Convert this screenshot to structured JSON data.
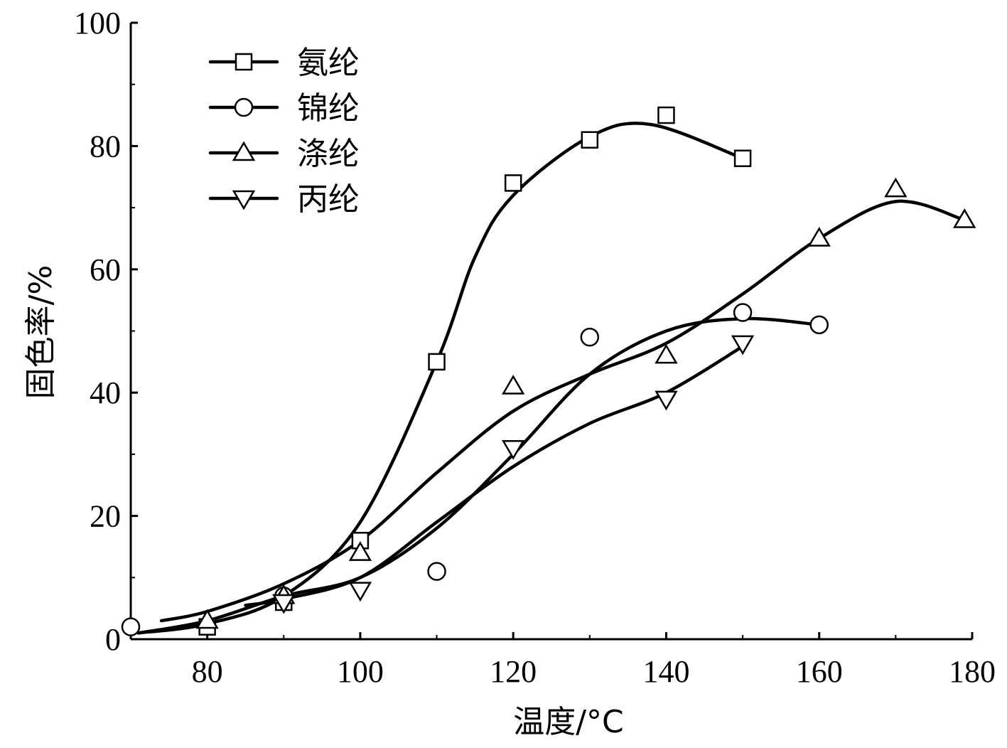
{
  "chart_data": {
    "type": "line",
    "title": "",
    "xlabel": "温度/°C",
    "ylabel": "固色率/%",
    "xlim": [
      70,
      180
    ],
    "ylim": [
      0,
      100
    ],
    "xticks": [
      80,
      100,
      120,
      140,
      160,
      180
    ],
    "yticks": [
      0,
      20,
      40,
      60,
      80,
      100
    ],
    "grid": false,
    "legend_position": "top-left",
    "series": [
      {
        "name": "氨纶",
        "marker": "square",
        "points": [
          [
            80,
            2
          ],
          [
            90,
            6
          ],
          [
            100,
            16
          ],
          [
            110,
            45
          ],
          [
            120,
            74
          ],
          [
            130,
            81
          ],
          [
            140,
            85
          ],
          [
            150,
            78
          ]
        ],
        "curve": [
          [
            71,
            1
          ],
          [
            80,
            2.5
          ],
          [
            90,
            7
          ],
          [
            100,
            19
          ],
          [
            110,
            45
          ],
          [
            115,
            62
          ],
          [
            120,
            72
          ],
          [
            130,
            81.5
          ],
          [
            138,
            83.5
          ],
          [
            150,
            78
          ]
        ]
      },
      {
        "name": "锦纶",
        "marker": "circle",
        "points": [
          [
            70,
            2
          ],
          [
            90,
            7
          ],
          [
            110,
            11
          ],
          [
            130,
            49
          ],
          [
            150,
            53
          ],
          [
            160,
            51
          ]
        ],
        "curve": [
          [
            71,
            1
          ],
          [
            80,
            3
          ],
          [
            90,
            7
          ],
          [
            100,
            10
          ],
          [
            110,
            18
          ],
          [
            120,
            30
          ],
          [
            130,
            43
          ],
          [
            140,
            50
          ],
          [
            150,
            52
          ],
          [
            160,
            51
          ]
        ]
      },
      {
        "name": "涤纶",
        "marker": "triangle-up",
        "points": [
          [
            80,
            3
          ],
          [
            90,
            7
          ],
          [
            100,
            14
          ],
          [
            120,
            41
          ],
          [
            140,
            46
          ],
          [
            160,
            65
          ],
          [
            170,
            73
          ],
          [
            179,
            68
          ]
        ],
        "curve": [
          [
            74,
            3
          ],
          [
            80,
            4.5
          ],
          [
            90,
            9
          ],
          [
            100,
            16
          ],
          [
            110,
            27
          ],
          [
            120,
            37
          ],
          [
            130,
            43
          ],
          [
            140,
            48
          ],
          [
            150,
            56
          ],
          [
            160,
            65
          ],
          [
            170,
            71
          ],
          [
            179,
            68
          ]
        ]
      },
      {
        "name": "丙纶",
        "marker": "triangle-down",
        "points": [
          [
            90,
            6
          ],
          [
            100,
            8
          ],
          [
            120,
            31
          ],
          [
            140,
            39
          ],
          [
            150,
            48
          ]
        ],
        "curve": [
          [
            85,
            5.5
          ],
          [
            90,
            6.5
          ],
          [
            100,
            10
          ],
          [
            110,
            19
          ],
          [
            120,
            28
          ],
          [
            130,
            35
          ],
          [
            140,
            40
          ],
          [
            150,
            47.5
          ]
        ]
      }
    ]
  }
}
